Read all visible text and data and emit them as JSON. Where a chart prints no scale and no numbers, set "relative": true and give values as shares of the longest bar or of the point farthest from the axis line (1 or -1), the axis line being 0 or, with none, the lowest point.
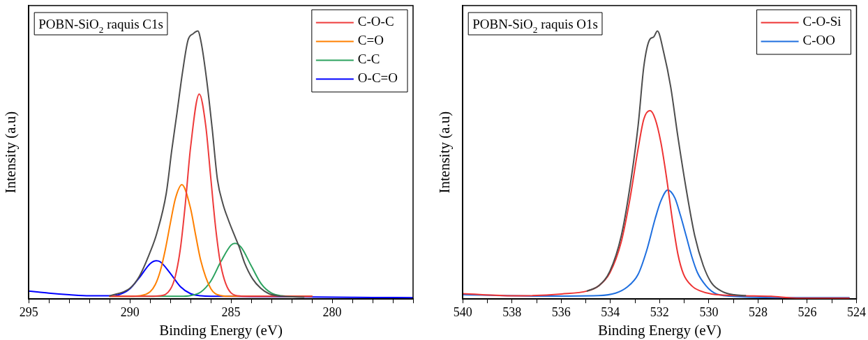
{
  "chart_data": [
    {
      "type": "line",
      "title": "POBN-SiO$_{2}$ raquis C1s",
      "xlabel": "Binding Energy (eV)",
      "ylabel": "Intensity (a.u)",
      "xlim": [
        295,
        276
      ],
      "xticks": [
        295,
        {
          "value": 294,
          "label": null
        },
        {
          "value": 293,
          "label": null
        },
        {
          "value": 292,
          "label": null
        },
        {
          "value": 291,
          "label": null
        },
        290,
        {
          "value": 289,
          "label": null
        },
        {
          "value": 288,
          "label": null
        },
        {
          "value": 287,
          "label": null
        },
        {
          "value": 286,
          "label": null
        },
        285,
        {
          "value": 284,
          "label": null
        },
        {
          "value": 283,
          "label": null
        },
        {
          "value": 282,
          "label": null
        },
        {
          "value": 281,
          "label": null
        },
        280,
        {
          "value": 279,
          "label": null
        },
        {
          "value": 278,
          "label": null
        },
        {
          "value": 277,
          "label": null
        },
        {
          "value": 276,
          "label": null
        }
      ],
      "relative": true,
      "legend": "top right",
      "marker": "none",
      "series": [
        {
          "color": "#4d4d4d",
          "x": [
            291,
            290,
            289.53,
            289,
            288.67,
            288.2,
            287.93,
            287.67,
            287.4,
            287.13,
            286.87,
            286.64,
            286.47,
            286.2,
            285.93,
            285.67,
            285.4,
            285.13,
            284.87,
            284.6,
            284.33,
            283.93,
            283.53,
            283.13,
            282.47,
            281.4
          ],
          "values": [
            0.012,
            0.04,
            0.085,
            0.175,
            0.245,
            0.395,
            0.555,
            0.695,
            0.845,
            0.965,
            0.99,
            1,
            0.955,
            0.815,
            0.635,
            0.445,
            0.355,
            0.295,
            0.245,
            0.195,
            0.135,
            0.075,
            0.04,
            0.02,
            0.01,
            0.007
          ]
        },
        {
          "name": "C-O-C",
          "color": "#ee3b3b",
          "x": [
            291,
            290,
            289,
            288.5,
            288,
            287.75,
            287.5,
            287.25,
            287,
            286.57,
            286.25,
            286,
            285.75,
            285.5,
            285,
            284.5,
            284,
            281
          ],
          "values": [
            0.01,
            0.01,
            0.01,
            0.012,
            0.036,
            0.086,
            0.19,
            0.362,
            0.566,
            0.765,
            0.647,
            0.451,
            0.259,
            0.124,
            0.023,
            0.011,
            0.01,
            0.01
          ]
        },
        {
          "name": "C=O",
          "color": "#ff8000",
          "x": [
            291,
            290,
            289.5,
            289,
            288.75,
            288.5,
            288.25,
            288,
            287.75,
            287.43,
            287,
            286.75,
            286.5,
            286,
            285.5,
            285,
            281
          ],
          "values": [
            0.01,
            0.01,
            0.012,
            0.027,
            0.053,
            0.104,
            0.184,
            0.283,
            0.375,
            0.427,
            0.338,
            0.239,
            0.145,
            0.039,
            0.013,
            0.01,
            0.01
          ]
        },
        {
          "name": "C-C",
          "color": "#2ca25f",
          "x": [
            291,
            288,
            287.5,
            287,
            286.5,
            286,
            285.5,
            285,
            284.8,
            284.5,
            284,
            283.5,
            283,
            282.5,
            282,
            281
          ],
          "values": [
            0.01,
            0.01,
            0.01,
            0.013,
            0.026,
            0.067,
            0.14,
            0.201,
            0.208,
            0.193,
            0.124,
            0.056,
            0.022,
            0.012,
            0.01,
            0.01
          ]
        },
        {
          "name": "O-C=O",
          "color": "#0000ff",
          "x": [
            295,
            294.5,
            294,
            293,
            292,
            291,
            290.5,
            290,
            289.5,
            289,
            288.69,
            288.5,
            288,
            287.5,
            287,
            286.5,
            286,
            285,
            284,
            282,
            280,
            278,
            276
          ],
          "values": [
            0.03,
            0.026,
            0.022,
            0.016,
            0.012,
            0.012,
            0.017,
            0.038,
            0.083,
            0.132,
            0.143,
            0.139,
            0.096,
            0.046,
            0.02,
            0.012,
            0.01,
            0.01,
            0.009,
            0.008,
            0.007,
            0.006,
            0.005
          ]
        }
      ]
    },
    {
      "type": "line",
      "title": "POBN-SiO$_{2}$ raquis O1s",
      "xlabel": "Binding Energy (eV)",
      "ylabel": "Intensity (a.u)",
      "xlim": [
        540,
        524
      ],
      "xticks": [
        540,
        {
          "value": 539,
          "label": null
        },
        538,
        {
          "value": 537,
          "label": null
        },
        536,
        {
          "value": 535,
          "label": null
        },
        534,
        {
          "value": 533,
          "label": null
        },
        532,
        {
          "value": 531,
          "label": null
        },
        530,
        {
          "value": 529,
          "label": null
        },
        528,
        {
          "value": 527,
          "label": null
        },
        526,
        {
          "value": 525,
          "label": null
        },
        524
      ],
      "relative": true,
      "legend": "top right",
      "marker": "none",
      "series": [
        {
          "color": "#4d4d4d",
          "x": [
            534.94,
            534.48,
            534.02,
            533.56,
            533.22,
            532.87,
            532.64,
            532.41,
            532.24,
            532.09,
            531.84,
            531.55,
            531.26,
            530.92,
            530.57,
            530.23,
            529.89,
            529.43,
            528.97,
            528.51
          ],
          "values": [
            0.03,
            0.049,
            0.104,
            0.235,
            0.41,
            0.65,
            0.869,
            0.967,
            0.978,
            1,
            0.923,
            0.792,
            0.607,
            0.41,
            0.235,
            0.126,
            0.06,
            0.027,
            0.016,
            0.013
          ]
        },
        {
          "name": "C-O-Si",
          "color": "#ee3333",
          "x": [
            540,
            537.93,
            535.98,
            534.94,
            534.48,
            534.02,
            533.56,
            533.22,
            532.87,
            532.64,
            532.39,
            532.18,
            531.95,
            531.72,
            531.49,
            531.26,
            531.03,
            530.69,
            530.34,
            529.89,
            528.74,
            527.47,
            526.44,
            524.3
          ],
          "values": [
            0.02,
            0.012,
            0.019,
            0.03,
            0.049,
            0.098,
            0.213,
            0.366,
            0.563,
            0.672,
            0.703,
            0.672,
            0.585,
            0.454,
            0.3,
            0.169,
            0.093,
            0.049,
            0.03,
            0.019,
            0.013,
            0.01,
            0.003,
            0.003
          ]
        },
        {
          "name": "C-OO",
          "color": "#1f6fdf",
          "x": [
            540,
            536.78,
            534.48,
            533.79,
            533.33,
            532.87,
            532.53,
            532.18,
            531.95,
            531.67,
            531.38,
            531.15,
            530.92,
            530.69,
            530.46,
            530.11,
            529.77,
            529.2,
            526.44,
            524.3
          ],
          "values": [
            0.016,
            0.011,
            0.013,
            0.022,
            0.044,
            0.093,
            0.18,
            0.3,
            0.366,
            0.407,
            0.377,
            0.311,
            0.235,
            0.158,
            0.098,
            0.049,
            0.022,
            0.011,
            0.005,
            0.005
          ]
        }
      ]
    }
  ]
}
